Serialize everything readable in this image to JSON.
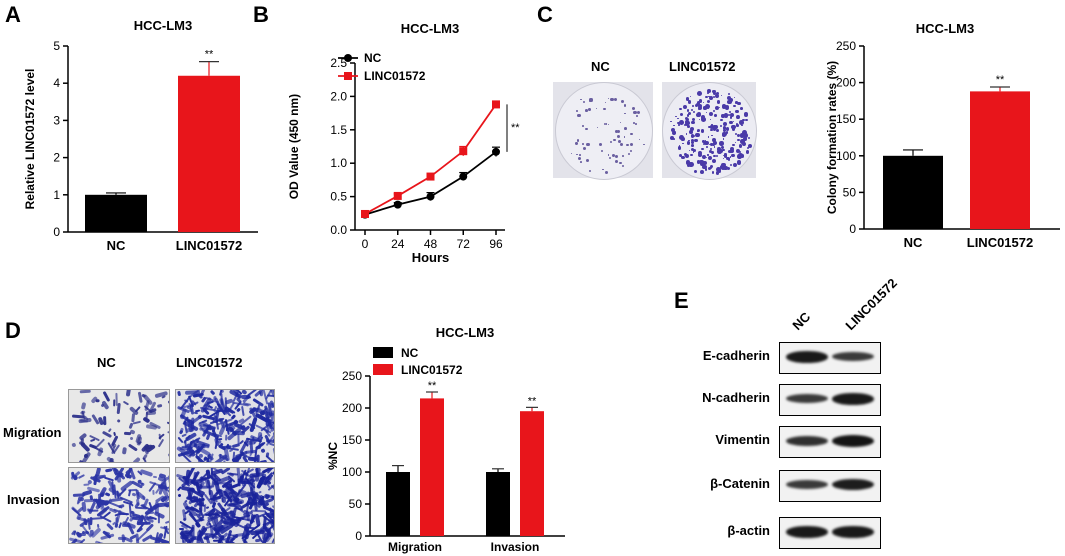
{
  "panels": {
    "A": {
      "letter": "A"
    },
    "B": {
      "letter": "B"
    },
    "C": {
      "letter": "C"
    },
    "D": {
      "letter": "D"
    },
    "E": {
      "letter": "E"
    }
  },
  "images": {
    "colony": {
      "nc": "NC",
      "linc": "LINC01572"
    },
    "transwell": {
      "nc": "NC",
      "linc": "LINC01572",
      "migration": "Migration",
      "invasion": "Invasion"
    }
  },
  "western": {
    "columns": [
      "NC",
      "LINC01572"
    ],
    "rows": [
      {
        "label": "E-cadherin",
        "nc": 0.9,
        "linc": 0.55
      },
      {
        "label": "N-cadherin",
        "nc": 0.55,
        "linc": 0.9
      },
      {
        "label": "Vimentin",
        "nc": 0.65,
        "linc": 0.95
      },
      {
        "label": "β-Catenin",
        "nc": 0.55,
        "linc": 0.85
      },
      {
        "label": "β-actin",
        "nc": 0.9,
        "linc": 0.9
      }
    ]
  },
  "colors": {
    "nc": "#000000",
    "linc": "#e8151b"
  },
  "chart_data": [
    {
      "id": "A",
      "type": "bar",
      "title": "HCC-LM3",
      "ylabel": "Relative  LINC01572 level",
      "categories": [
        "NC",
        "LINC01572"
      ],
      "values": [
        1.0,
        4.2
      ],
      "errors": [
        0.05,
        0.38
      ],
      "significance": [
        "",
        "**"
      ],
      "ylim": [
        0,
        5
      ],
      "yticks": [
        "0",
        "1",
        "2",
        "3",
        "4",
        "5"
      ]
    },
    {
      "id": "B",
      "type": "line",
      "title": "HCC-LM3",
      "xlabel": "Hours",
      "ylabel": "OD Value (450 nm)",
      "x": [
        0,
        24,
        48,
        72,
        96
      ],
      "xticks": [
        "0",
        "24",
        "48",
        "72",
        "96"
      ],
      "yticks": [
        "0.0",
        "0.5",
        "1.0",
        "1.5",
        "2.0",
        "2.5"
      ],
      "ylim": [
        0,
        2.5
      ],
      "legend": "top-left",
      "significance": "**",
      "series": [
        {
          "name": "NC",
          "values": [
            0.23,
            0.38,
            0.5,
            0.8,
            1.17
          ],
          "errors": [
            0.02,
            0.03,
            0.06,
            0.06,
            0.07
          ]
        },
        {
          "name": "LINC01572",
          "values": [
            0.24,
            0.51,
            0.8,
            1.18,
            1.88
          ],
          "errors": [
            0.02,
            0.03,
            0.04,
            0.07,
            0.05
          ]
        }
      ]
    },
    {
      "id": "C",
      "type": "bar",
      "title": "HCC-LM3",
      "ylabel": "Colony formation rates (%)",
      "categories": [
        "NC",
        "LINC01572"
      ],
      "values": [
        100,
        188
      ],
      "errors": [
        8,
        6
      ],
      "significance": [
        "",
        "**"
      ],
      "ylim": [
        0,
        250
      ],
      "yticks": [
        "0",
        "50",
        "100",
        "150",
        "200",
        "250"
      ]
    },
    {
      "id": "D",
      "type": "bar",
      "title": "HCC-LM3",
      "ylabel": "%NC",
      "categories": [
        "Migration",
        "Invasion"
      ],
      "series": [
        {
          "name": "NC",
          "values": [
            100,
            100
          ],
          "errors": [
            10,
            5
          ]
        },
        {
          "name": "LINC01572",
          "values": [
            215,
            195
          ],
          "errors": [
            10,
            6
          ]
        }
      ],
      "significance": [
        "**",
        "**"
      ],
      "ylim": [
        0,
        250
      ],
      "yticks": [
        "0",
        "50",
        "100",
        "150",
        "200",
        "250"
      ],
      "legend": "top-left"
    }
  ]
}
